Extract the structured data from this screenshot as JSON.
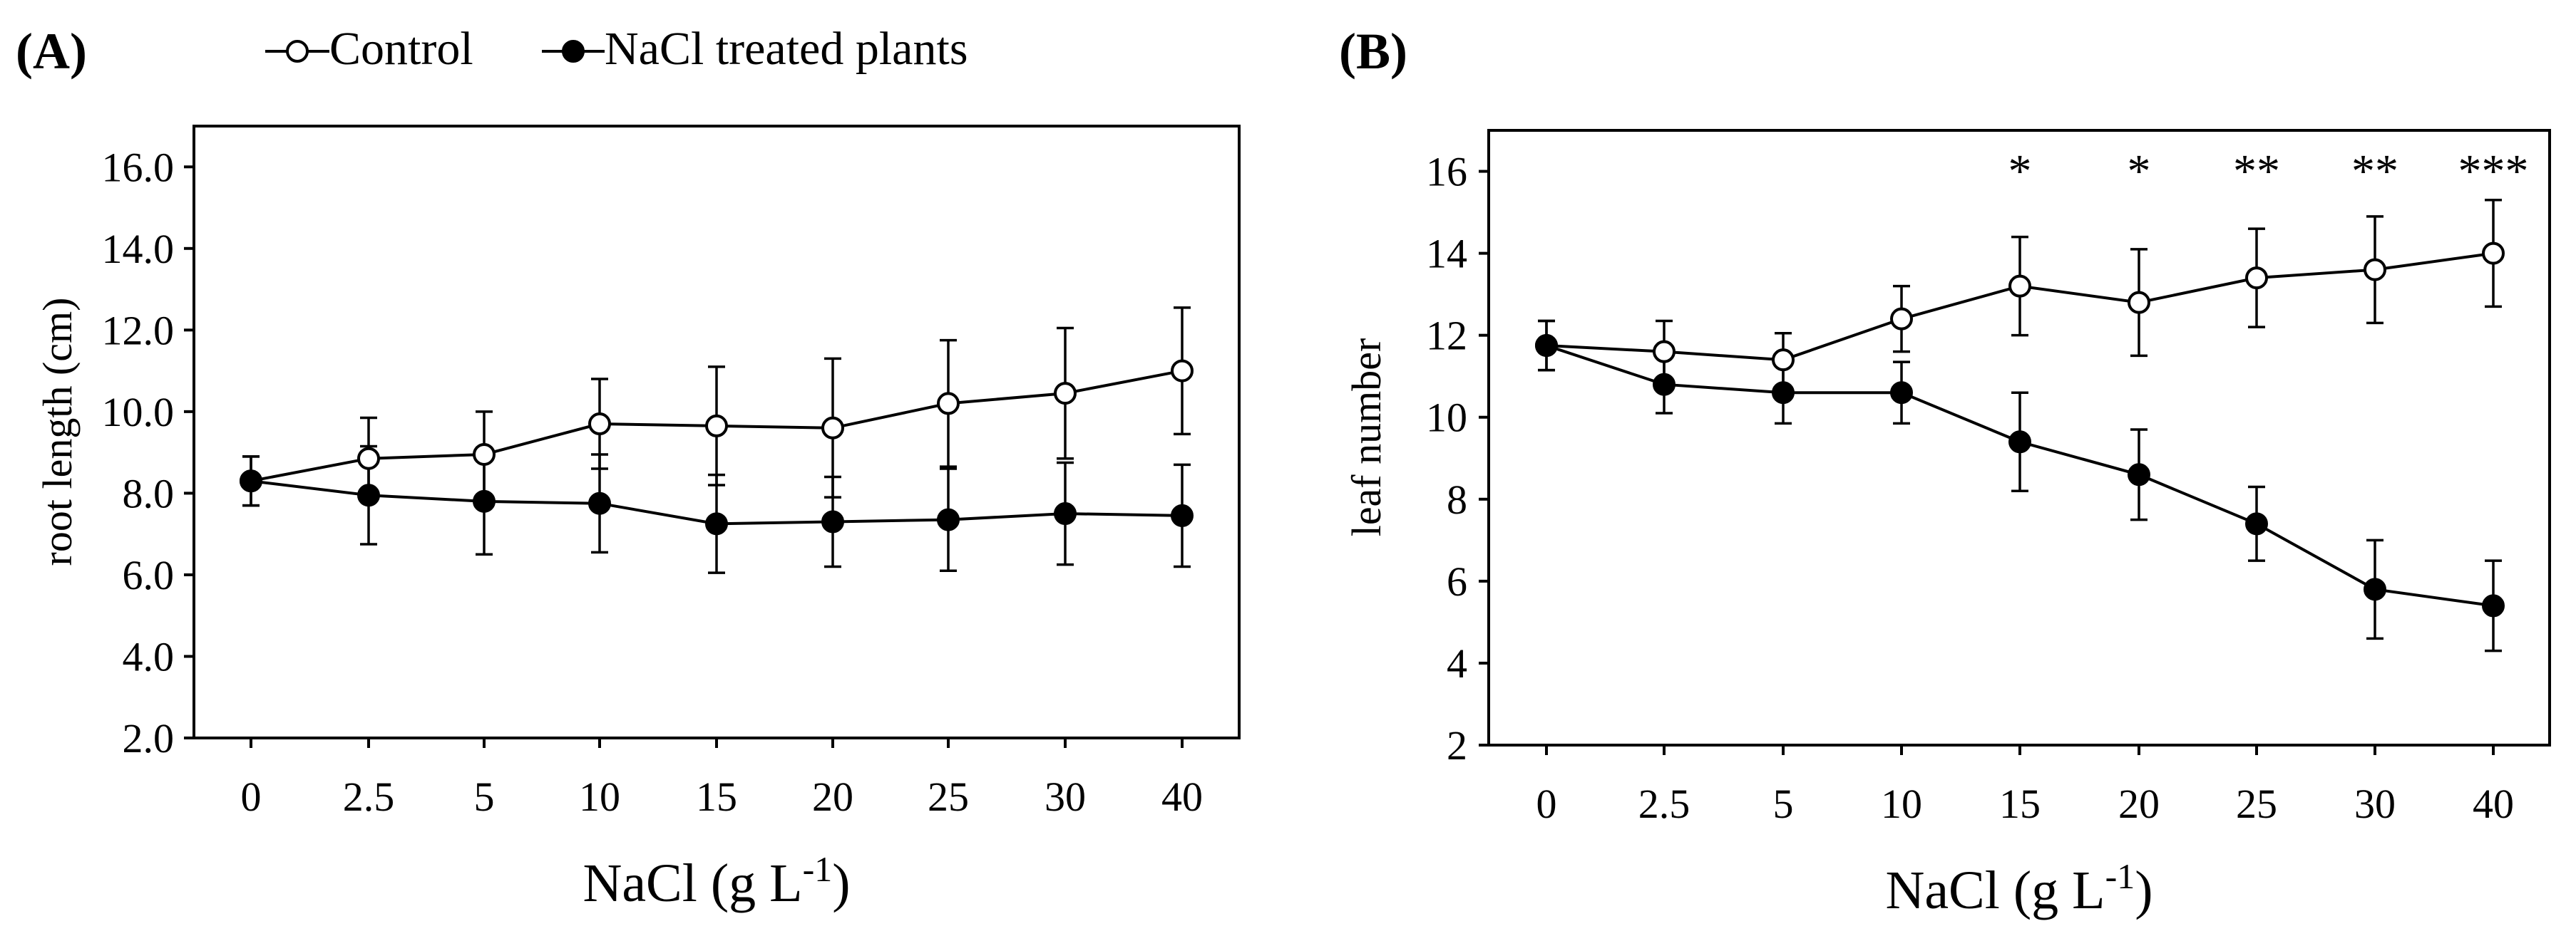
{
  "legend": {
    "control_label": "Control",
    "treated_label": "NaCl treated plants"
  },
  "chart_data": [
    {
      "panel_label": "A",
      "type": "line",
      "title": "",
      "xlabel": "NaCl (g L",
      "xlabel_sup": "-1",
      "xlabel_close": ")",
      "ylabel": "root length (cm)",
      "categories": [
        "0",
        "2.5",
        "5",
        "10",
        "15",
        "20",
        "25",
        "30",
        "40"
      ],
      "ylim": [
        2.0,
        17.0
      ],
      "yticks": [
        2.0,
        4.0,
        6.0,
        8.0,
        10.0,
        12.0,
        14.0,
        16.0
      ],
      "ytick_labels": [
        "2.0",
        "4.0",
        "6.0",
        "8.0",
        "10.0",
        "12.0",
        "14.0",
        "16.0"
      ],
      "significance": [
        "",
        "",
        "",
        "",
        "",
        "",
        "",
        "",
        ""
      ],
      "series": [
        {
          "name": "Control",
          "marker": "open",
          "values": [
            8.3,
            8.85,
            8.95,
            9.7,
            9.65,
            9.6,
            10.2,
            10.45,
            11.0
          ],
          "errors": [
            0.6,
            1.0,
            1.05,
            1.1,
            1.45,
            1.7,
            1.55,
            1.6,
            1.55
          ]
        },
        {
          "name": "NaCl treated plants",
          "marker": "filled",
          "values": [
            8.3,
            7.95,
            7.8,
            7.75,
            7.25,
            7.3,
            7.35,
            7.5,
            7.45
          ],
          "errors": [
            0.6,
            1.2,
            1.3,
            1.2,
            1.2,
            1.1,
            1.25,
            1.25,
            1.25
          ]
        }
      ]
    },
    {
      "panel_label": "B",
      "type": "line",
      "title": "",
      "xlabel": "NaCl (g L",
      "xlabel_sup": "-1",
      "xlabel_close": ")",
      "ylabel": "leaf number",
      "categories": [
        "0",
        "2.5",
        "5",
        "10",
        "15",
        "20",
        "25",
        "30",
        "40"
      ],
      "ylim": [
        2,
        17
      ],
      "yticks": [
        2,
        4,
        6,
        8,
        10,
        12,
        14,
        16
      ],
      "ytick_labels": [
        "2",
        "4",
        "6",
        "8",
        "10",
        "12",
        "14",
        "16"
      ],
      "significance": [
        "",
        "",
        "",
        "",
        "*",
        "*",
        "**",
        "**",
        "***"
      ],
      "series": [
        {
          "name": "Control",
          "marker": "open",
          "values": [
            11.75,
            11.6,
            11.4,
            12.4,
            13.2,
            12.8,
            13.4,
            13.6,
            14.0
          ],
          "errors": [
            0.6,
            0.75,
            0.65,
            0.8,
            1.2,
            1.3,
            1.2,
            1.3,
            1.3
          ]
        },
        {
          "name": "NaCl treated plants",
          "marker": "filled",
          "values": [
            11.75,
            10.8,
            10.6,
            10.6,
            9.4,
            8.6,
            7.4,
            5.8,
            5.4
          ],
          "errors": [
            0.6,
            0.7,
            0.75,
            0.75,
            1.2,
            1.1,
            0.9,
            1.2,
            1.1
          ]
        }
      ]
    }
  ]
}
